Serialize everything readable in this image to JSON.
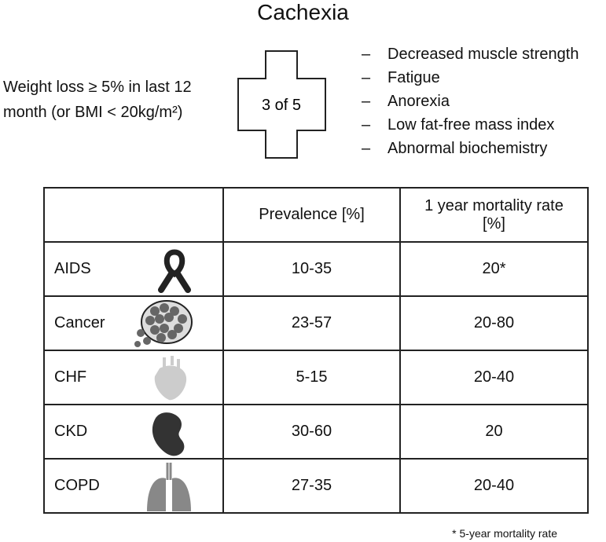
{
  "title": "Cachexia",
  "criteria": {
    "major": [
      "Weight loss ≥ 5% in last 12",
      "month (or BMI < 20kg/m²)"
    ],
    "rule": "3 of 5",
    "minor": [
      "Decreased muscle strength",
      "Fatigue",
      "Anorexia",
      "Low fat-free mass index",
      "Abnormal biochemistry"
    ]
  },
  "table": {
    "header": [
      "Prevalence [%]",
      "1 year mortality rate [%]"
    ],
    "rows": [
      [
        "AIDS",
        "10-35",
        "20*"
      ],
      [
        "Cancer",
        "23-57",
        "20-80"
      ],
      [
        "CHF",
        "5-15",
        "20-40"
      ],
      [
        "CKD",
        "30-60",
        "20"
      ],
      [
        "COPD",
        "27-35",
        "20-40"
      ]
    ]
  },
  "footnote": "* 5-year mortality rate"
}
